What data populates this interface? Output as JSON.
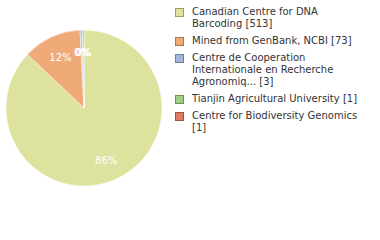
{
  "chart_data": {
    "type": "pie",
    "categories": [
      "Canadian Centre for DNA Barcoding [513]",
      "Mined from GenBank, NCBI [73]",
      "Centre de Cooperation Internationale en Recherche Agronomiq... [3]",
      "Tianjin Agricultural University [1]",
      "Centre for Biodiversity Genomics [1]"
    ],
    "values": [
      86,
      12,
      0.4,
      0.2,
      0.2
    ],
    "value_labels": [
      "86%",
      "12%",
      "0%",
      "0%",
      "0%"
    ],
    "colors": [
      "#dde39e",
      "#f0aa78",
      "#9fb6da",
      "#9fcf80",
      "#e07b63"
    ],
    "data_labels": true,
    "legend": "right"
  }
}
